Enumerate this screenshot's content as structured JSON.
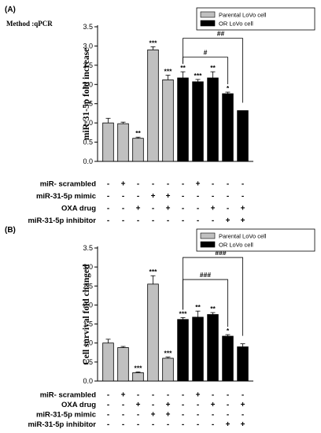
{
  "chart_data": [
    {
      "type": "bar",
      "panel_label": "(A)",
      "method_label": "Method :qPCR",
      "ylabel": "miR-31-5p fold increase",
      "ylim": [
        0,
        3.5
      ],
      "yticks": [
        "0.0",
        "0.5",
        "1.0",
        "1.5",
        "2.0",
        "2.5",
        "3.0",
        "3.5"
      ],
      "legend_placement": "top-right",
      "series": [
        {
          "name": "Parental LoVo cell",
          "color": "#c0c0c0",
          "values": [
            1.0,
            0.98,
            0.6,
            2.9,
            2.12
          ],
          "errors": [
            0.12,
            0.04,
            0.03,
            0.08,
            0.12
          ],
          "significance": [
            "",
            "",
            "**",
            "***",
            "***"
          ]
        },
        {
          "name": "OR LoVo cell",
          "color": "#000000",
          "values": [
            2.17,
            2.07,
            2.17,
            1.76,
            1.32
          ],
          "errors": [
            0.16,
            0.06,
            0.16,
            0.04,
            0.0
          ],
          "significance": [
            "**",
            "***",
            "**",
            "*",
            ""
          ]
        }
      ],
      "comparisons": [
        {
          "label": "##",
          "from_bar": 5,
          "to_bar": 9
        },
        {
          "label": "#",
          "from_bar": 5,
          "to_bar": 8
        }
      ],
      "conditions": [
        {
          "label": "miR- scrambled",
          "marks": [
            "-",
            "+",
            "-",
            "-",
            "-",
            "-",
            "+",
            "-",
            "-",
            "-"
          ]
        },
        {
          "label": "miR-31-5p mimic",
          "marks": [
            "-",
            "-",
            "-",
            "+",
            "+",
            "-",
            "-",
            "-",
            "-",
            "-"
          ]
        },
        {
          "label": "OXA drug",
          "marks": [
            "-",
            "-",
            "+",
            "-",
            "+",
            "-",
            "-",
            "+",
            "-",
            "+"
          ]
        },
        {
          "label": "miR-31-5p inhibitor",
          "marks": [
            "-",
            "-",
            "-",
            "-",
            "-",
            "-",
            "-",
            "-",
            "+",
            "+"
          ]
        }
      ]
    },
    {
      "type": "bar",
      "panel_label": "(B)",
      "ylabel": "Cell survival fold changed",
      "ylim": [
        0,
        3.5
      ],
      "yticks": [
        "0.0",
        "0.5",
        "1.0",
        "1.5",
        "2.0",
        "2.5",
        "3.0",
        "3.5"
      ],
      "legend_placement": "top-right",
      "series": [
        {
          "name": "Parental LoVo cell",
          "color": "#c0c0c0",
          "values": [
            1.0,
            0.88,
            0.22,
            2.55,
            0.6
          ],
          "errors": [
            0.1,
            0.03,
            0.02,
            0.22,
            0.03
          ],
          "significance": [
            "",
            "",
            "***",
            "***",
            "***"
          ]
        },
        {
          "name": "OR LoVo cell",
          "color": "#000000",
          "values": [
            1.62,
            1.68,
            1.75,
            1.18,
            0.9
          ],
          "errors": [
            0.05,
            0.16,
            0.05,
            0.04,
            0.08
          ],
          "significance": [
            "***",
            "**",
            "**",
            "*",
            ""
          ]
        }
      ],
      "comparisons": [
        {
          "label": "###",
          "from_bar": 5,
          "to_bar": 9
        },
        {
          "label": "###",
          "from_bar": 5,
          "to_bar": 8
        }
      ],
      "conditions": [
        {
          "label": "miR- scrambled",
          "marks": [
            "-",
            "+",
            "-",
            "-",
            "-",
            "-",
            "+",
            "-",
            "-",
            "-"
          ]
        },
        {
          "label": "OXA drug",
          "marks": [
            "-",
            "-",
            "+",
            "-",
            "+",
            "-",
            "-",
            "+",
            "-",
            "+"
          ]
        },
        {
          "label": "miR-31-5p mimic",
          "marks": [
            "-",
            "-",
            "-",
            "+",
            "+",
            "-",
            "-",
            "-",
            "-",
            "-"
          ]
        },
        {
          "label": "miR-31-5p inhibitor",
          "marks": [
            "-",
            "-",
            "-",
            "-",
            "-",
            "-",
            "-",
            "-",
            "+",
            "+"
          ]
        }
      ]
    }
  ]
}
